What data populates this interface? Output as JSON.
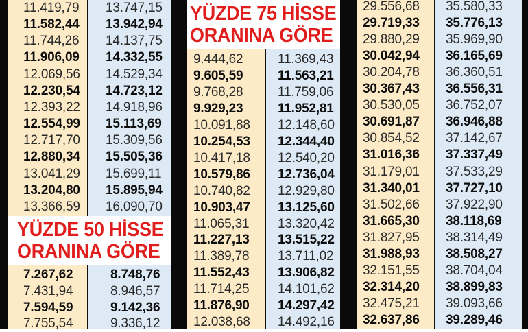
{
  "headings": {
    "yuzde75_line1": "YÜZDE 75 HİSSE",
    "yuzde75_line2": "ORANINA GÖRE",
    "yuzde50_line1": "YÜZDE 50 HİSSE",
    "yuzde50_line2": "ORANINA GÖRE"
  },
  "left_table": [
    [
      "11.419,79",
      "13.747,15"
    ],
    [
      "11.582,44",
      "13.942,94"
    ],
    [
      "11.744,26",
      "14.137,75"
    ],
    [
      "11.906,09",
      "14.332,55"
    ],
    [
      "12.069,56",
      "14.529,34"
    ],
    [
      "12.230,54",
      "14.723,12"
    ],
    [
      "12.393,22",
      "14.918,96"
    ],
    [
      "12.554,99",
      "15.113,69"
    ],
    [
      "12.717,70",
      "15.309,56"
    ],
    [
      "12.880,34",
      "15.505,36"
    ],
    [
      "13.041,29",
      "15.699,11"
    ],
    [
      "13.204,80",
      "15.895,94"
    ],
    [
      "13.366,59",
      "16.090,70"
    ]
  ],
  "left_bottom_table": [
    [
      "7.267,62",
      "8.748,76"
    ],
    [
      "7.431,94",
      "8.946,57"
    ],
    [
      "7.594,59",
      "9.142,36"
    ],
    [
      "7.755,54",
      "9.336,12"
    ]
  ],
  "middle_table": [
    [
      "9.444,62",
      "11.369,43"
    ],
    [
      "9.605,59",
      "11.563,21"
    ],
    [
      "9.768,28",
      "11.759,06"
    ],
    [
      "9.929,23",
      "11.952,81"
    ],
    [
      "10.091,88",
      "12.148,60"
    ],
    [
      "10.254,53",
      "12.344,40"
    ],
    [
      "10.417,18",
      "12.540,20"
    ],
    [
      "10.579,86",
      "12.736,04"
    ],
    [
      "10.740,82",
      "12.929,80"
    ],
    [
      "10.903,47",
      "13.125,60"
    ],
    [
      "11.065,31",
      "13.320,42"
    ],
    [
      "11.227,13",
      "13.515,22"
    ],
    [
      "11.389,78",
      "13.711,02"
    ],
    [
      "11.552,43",
      "13.906,82"
    ],
    [
      "11.714,25",
      "14.101,62"
    ],
    [
      "11.876,90",
      "14.297,42"
    ],
    [
      "12.038,68",
      "14.492,16"
    ]
  ],
  "right_table": [
    [
      "29.556,68",
      "35.580,33"
    ],
    [
      "29.719,33",
      "35.776,13"
    ],
    [
      "29.880,29",
      "35.969,90"
    ],
    [
      "30.042,94",
      "36.165,69"
    ],
    [
      "30.204,78",
      "36.360,51"
    ],
    [
      "30.367,43",
      "36.556,31"
    ],
    [
      "30.530,05",
      "36.752,07"
    ],
    [
      "30.691,87",
      "36.946,88"
    ],
    [
      "30.854,52",
      "37.142,67"
    ],
    [
      "31.016,36",
      "37.337,49"
    ],
    [
      "31.179,01",
      "37.533,29"
    ],
    [
      "31.340,01",
      "37.727,10"
    ],
    [
      "31.502,66",
      "37.922,90"
    ],
    [
      "31.665,30",
      "38.118,69"
    ],
    [
      "31.827,95",
      "38.314,49"
    ],
    [
      "31.988,93",
      "38.508,27"
    ],
    [
      "32.151,55",
      "38.704,04"
    ],
    [
      "32.314,20",
      "38.899,83"
    ],
    [
      "32.475,21",
      "39.093,66"
    ],
    [
      "32.637,86",
      "39.289,46"
    ]
  ],
  "colors": {
    "cream": "#fdebc8",
    "blue": "#ddeaf6",
    "heading_red": "#e01e1e",
    "bar": "#0a0a0a"
  }
}
